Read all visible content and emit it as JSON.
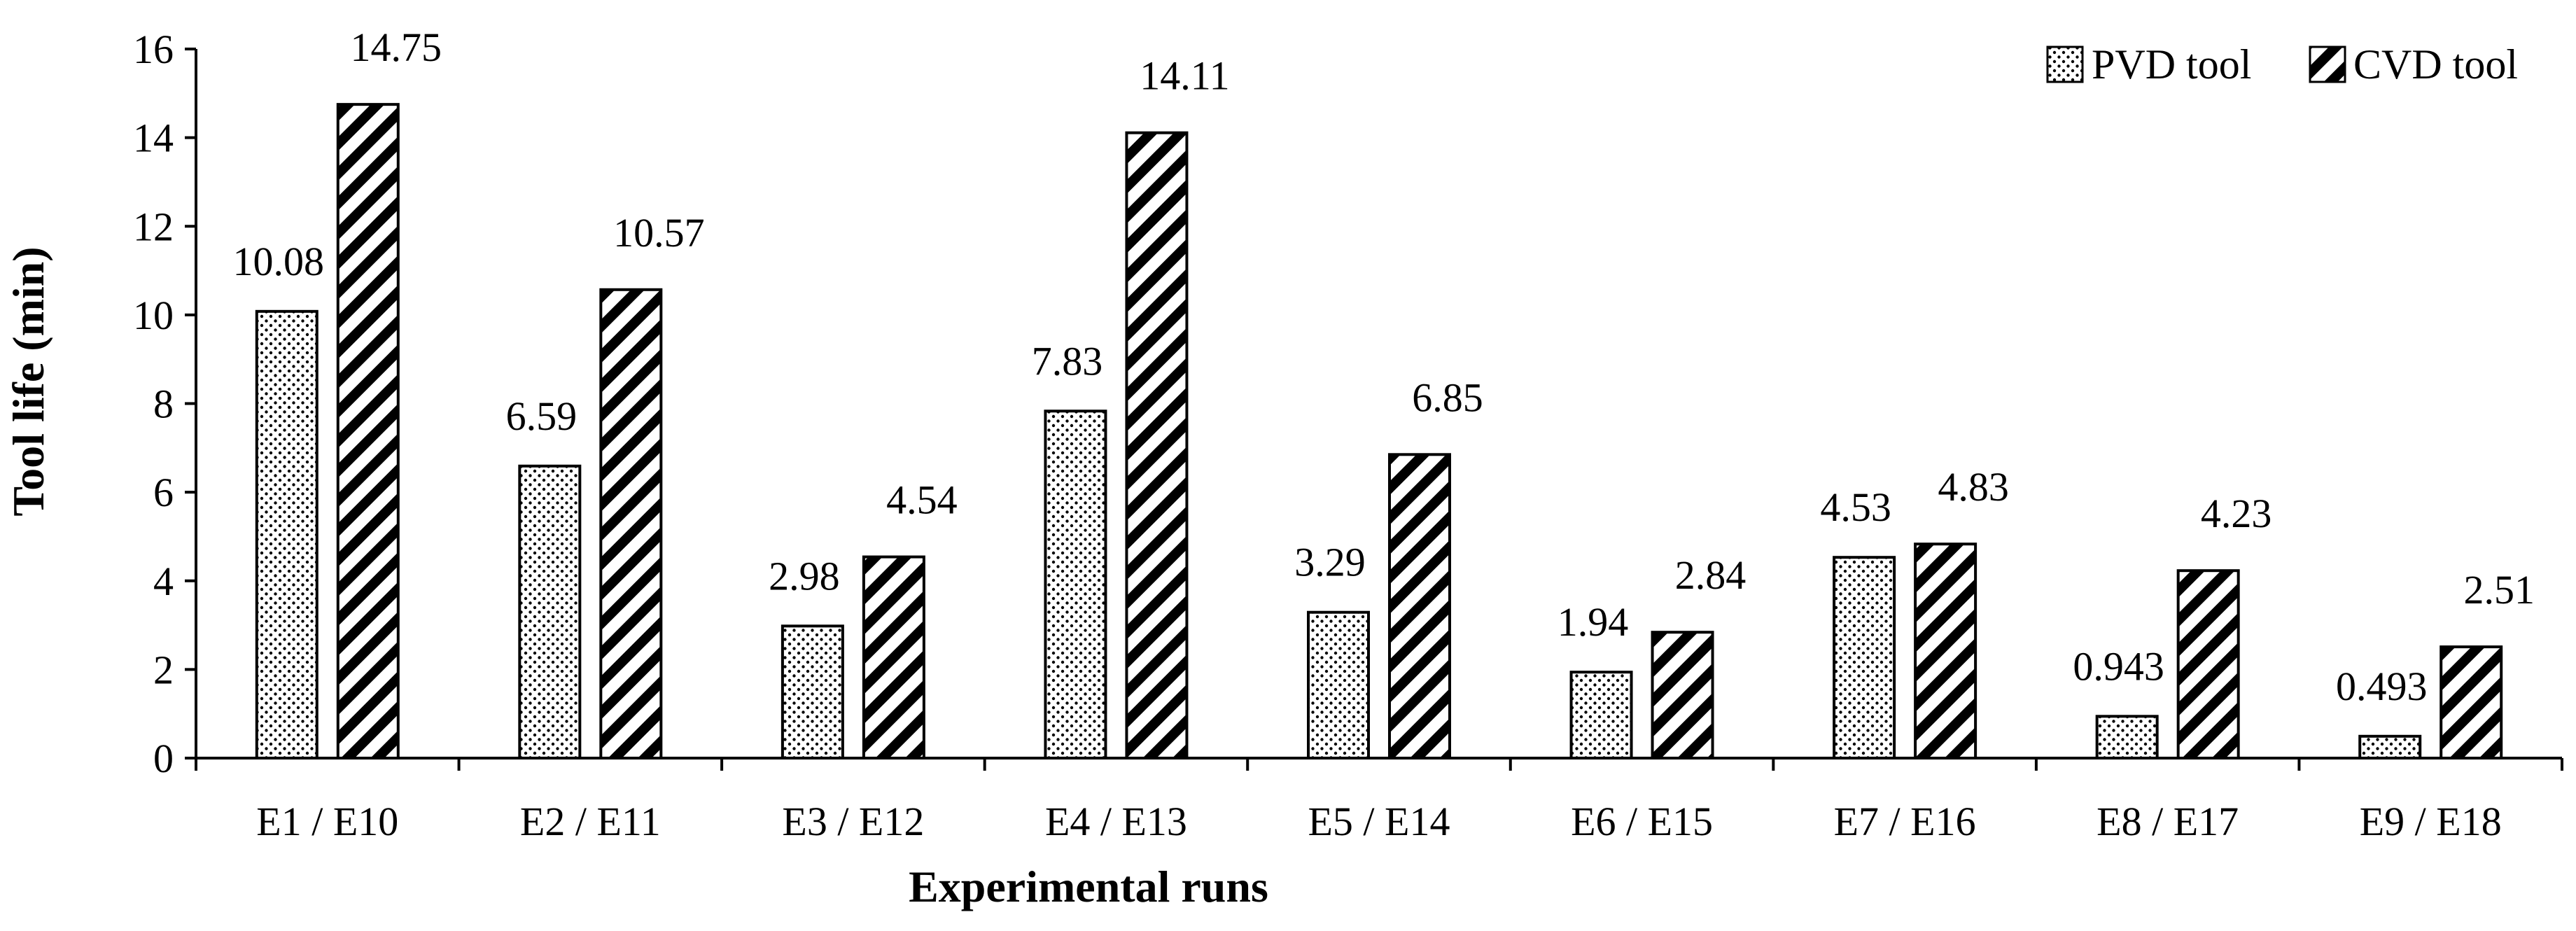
{
  "chart_data": {
    "type": "bar",
    "title": "",
    "xlabel": "Experimental runs",
    "ylabel": "Tool life (min)",
    "ylim": [
      0,
      16
    ],
    "yticks": [
      0,
      2,
      4,
      6,
      8,
      10,
      12,
      14,
      16
    ],
    "grid": false,
    "legend_position": "top-right",
    "categories": [
      "E1 / E10",
      "E2 / E11",
      "E3 / E12",
      "E4 / E13",
      "E5 / E14",
      "E6 / E15",
      "E7 / E16",
      "E8 / E17",
      "E9 / E18"
    ],
    "series": [
      {
        "name": "PVD tool",
        "pattern": "dots",
        "values": [
          10.08,
          6.59,
          2.98,
          7.83,
          3.29,
          1.94,
          4.53,
          0.943,
          0.493
        ],
        "labels": [
          "10.08",
          "6.59",
          "2.98",
          "7.83",
          "3.29",
          "1.94",
          "4.53",
          "0.943",
          "0.493"
        ]
      },
      {
        "name": "CVD tool",
        "pattern": "diagonal-stripes",
        "values": [
          14.75,
          10.57,
          4.54,
          14.11,
          6.85,
          2.84,
          4.83,
          4.23,
          2.51
        ],
        "labels": [
          "14.75",
          "10.57",
          "4.54",
          "14.11",
          "6.85",
          "2.84",
          "4.83",
          "4.23",
          "2.51"
        ]
      }
    ],
    "colors": {
      "axis": "#000000",
      "bar_outline": "#000000",
      "background": "#ffffff"
    }
  }
}
